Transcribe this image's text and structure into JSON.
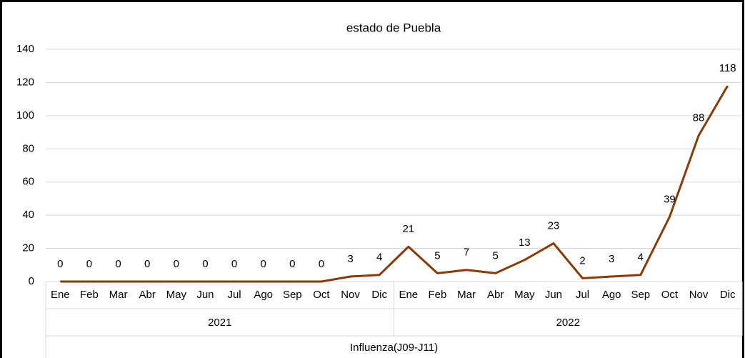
{
  "chart_data": {
    "type": "line",
    "title": "estado de Puebla",
    "categories": [
      "Ene",
      "Feb",
      "Mar",
      "Abr",
      "May",
      "Jun",
      "Jul",
      "Ago",
      "Sep",
      "Oct",
      "Nov",
      "Dic",
      "Ene",
      "Feb",
      "Mar",
      "Abr",
      "May",
      "Jun",
      "Jul",
      "Ago",
      "Sep",
      "Oct",
      "Nov",
      "Dic"
    ],
    "x_groups": [
      "2021",
      "2022"
    ],
    "x_label": "Influenza(J09-J11)",
    "values": [
      0,
      0,
      0,
      0,
      0,
      0,
      0,
      0,
      0,
      0,
      3,
      4,
      21,
      5,
      7,
      5,
      13,
      23,
      2,
      3,
      4,
      39,
      88,
      118
    ],
    "color": "#843c0c",
    "ylim": [
      0,
      140
    ],
    "yticks": [
      0,
      20,
      40,
      60,
      80,
      100,
      120,
      140
    ],
    "grid": true
  }
}
